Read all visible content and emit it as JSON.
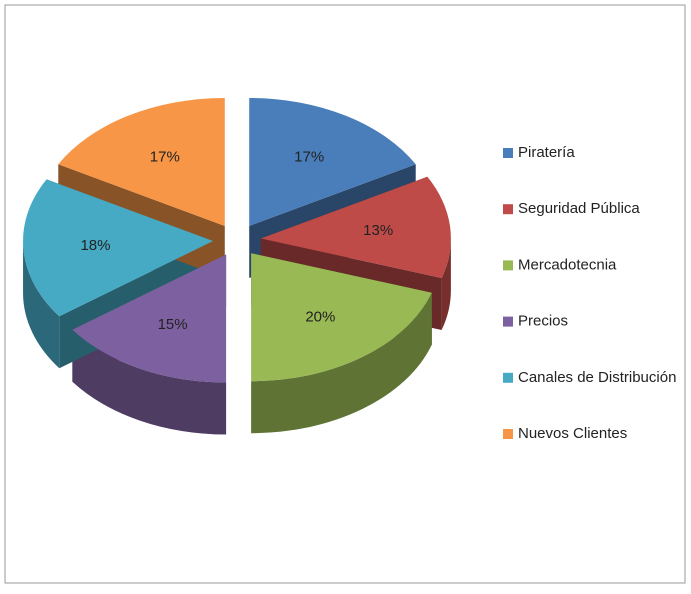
{
  "chart_data": {
    "type": "pie",
    "categories": [
      "Piratería",
      "Seguridad Pública",
      "Mercadotecnia",
      "Precios",
      "Canales de Distribución",
      "Nuevos Clientes"
    ],
    "values": [
      17,
      13,
      20,
      15,
      18,
      17
    ],
    "value_labels": [
      "17%",
      "13%",
      "20%",
      "15%",
      "18%",
      "17%"
    ],
    "colors": [
      "#4a7ebb",
      "#be4b48",
      "#98b954",
      "#7d60a0",
      "#46aac5",
      "#f79646"
    ],
    "legend": "right"
  }
}
